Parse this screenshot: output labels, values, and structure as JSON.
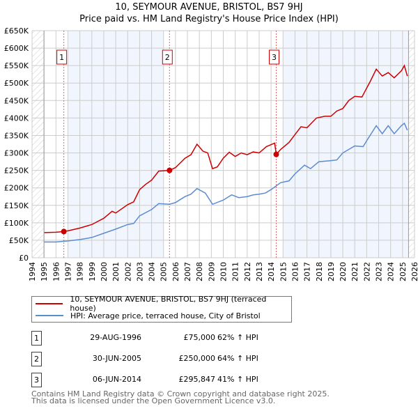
{
  "header": {
    "title": "10, SEYMOUR AVENUE, BRISTOL, BS7 9HJ",
    "subtitle": "Price paid vs. HM Land Registry's House Price Index (HPI)"
  },
  "chart_data": {
    "type": "line",
    "title": "10, SEYMOUR AVENUE, BRISTOL, BS7 9HJ — Price paid vs. HM Land Registry's House Price Index (HPI)",
    "xlim": [
      1994,
      2026
    ],
    "ylim": [
      0,
      650000
    ],
    "x_ticks": [
      "1994",
      "1995",
      "1996",
      "1997",
      "1998",
      "1999",
      "2000",
      "2001",
      "2002",
      "2003",
      "2004",
      "2005",
      "2006",
      "2007",
      "2008",
      "2009",
      "2010",
      "2011",
      "2012",
      "2013",
      "2014",
      "2015",
      "2016",
      "2017",
      "2018",
      "2019",
      "2020",
      "2021",
      "2022",
      "2023",
      "2024",
      "2025",
      "2026"
    ],
    "y_ticks": [
      "£0",
      "£50K",
      "£100K",
      "£150K",
      "£200K",
      "£250K",
      "£300K",
      "£350K",
      "£400K",
      "£450K",
      "£500K",
      "£550K",
      "£600K",
      "£650K"
    ],
    "shaded_ranges": [
      [
        1997,
        2005
      ],
      [
        2015,
        2025.5
      ]
    ],
    "hatched_ranges": [
      [
        1994,
        1995
      ],
      [
        2025.5,
        2026
      ]
    ],
    "series": [
      {
        "name": "10, SEYMOUR AVENUE, BRISTOL, BS7 9HJ (terraced house)",
        "color": "#cc0000",
        "x": [
          1995,
          1996,
          1996.66,
          1997,
          1998,
          1999,
          2000,
          2000.7,
          2001,
          2002,
          2002.5,
          2003,
          2003.5,
          2004,
          2004.6,
          2005.5,
          2006,
          2006.8,
          2007.3,
          2007.8,
          2008.3,
          2008.7,
          2009.1,
          2009.5,
          2010,
          2010.5,
          2011,
          2011.5,
          2012,
          2012.5,
          2013,
          2013.6,
          2014.3,
          2014.43,
          2014.8,
          2015.5,
          2016.5,
          2017,
          2017.8,
          2018.5,
          2019,
          2019.5,
          2020,
          2020.5,
          2021,
          2021.6,
          2022.3,
          2022.8,
          2023.3,
          2023.8,
          2024.3,
          2024.9,
          2025.15,
          2025.4
        ],
        "values": [
          72000,
          73000,
          75000,
          77000,
          85000,
          95000,
          113000,
          133000,
          128000,
          152000,
          160000,
          195000,
          210000,
          222000,
          248000,
          250000,
          258000,
          285000,
          295000,
          325000,
          305000,
          300000,
          255000,
          260000,
          285000,
          302000,
          290000,
          300000,
          295000,
          303000,
          300000,
          318000,
          328000,
          295847,
          310000,
          330000,
          375000,
          372000,
          400000,
          405000,
          405000,
          420000,
          427000,
          450000,
          462000,
          460000,
          505000,
          540000,
          520000,
          530000,
          515000,
          535000,
          550000,
          520000
        ]
      },
      {
        "name": "HPI: Average price, terraced house, City of Bristol",
        "color": "#5b8bd0",
        "x": [
          1995,
          1996,
          1997,
          1998,
          1999,
          2000,
          2001,
          2002,
          2002.5,
          2003,
          2004,
          2004.6,
          2005.5,
          2006,
          2006.8,
          2007.3,
          2007.8,
          2008.5,
          2009.1,
          2010,
          2010.7,
          2011.3,
          2012,
          2012.5,
          2013,
          2013.5,
          2014,
          2014.8,
          2015.5,
          2016,
          2016.8,
          2017.3,
          2018,
          2019,
          2019.5,
          2020,
          2021,
          2021.7,
          2022,
          2022.8,
          2023.3,
          2023.8,
          2024.3,
          2024.9,
          2025.15,
          2025.4
        ],
        "values": [
          45000,
          45000,
          48000,
          52000,
          58000,
          70000,
          82000,
          95000,
          98000,
          120000,
          138000,
          155000,
          153000,
          158000,
          175000,
          182000,
          198000,
          185000,
          153000,
          165000,
          180000,
          172000,
          175000,
          180000,
          182000,
          185000,
          195000,
          215000,
          220000,
          240000,
          265000,
          255000,
          275000,
          278000,
          280000,
          300000,
          320000,
          318000,
          335000,
          378000,
          355000,
          378000,
          355000,
          378000,
          385000,
          365000
        ]
      }
    ],
    "sales": [
      {
        "label": "1",
        "x": 1996.66,
        "value": 75000
      },
      {
        "label": "2",
        "x": 2005.5,
        "value": 250000
      },
      {
        "label": "3",
        "x": 2014.43,
        "value": 295847
      }
    ]
  },
  "legend": {
    "items": [
      "10, SEYMOUR AVENUE, BRISTOL, BS7 9HJ (terraced house)",
      "HPI: Average price, terraced house, City of Bristol"
    ]
  },
  "table": [
    {
      "num": "1",
      "date": "29-AUG-1996",
      "price": "£75,000",
      "pct": "62% ↑ HPI"
    },
    {
      "num": "2",
      "date": "30-JUN-2005",
      "price": "£250,000",
      "pct": "64% ↑ HPI"
    },
    {
      "num": "3",
      "date": "06-JUN-2014",
      "price": "£295,847",
      "pct": "41% ↑ HPI"
    }
  ],
  "footer": {
    "line1": "Contains HM Land Registry data © Crown copyright and database right 2025.",
    "line2": "This data is licensed under the Open Government Licence v3.0."
  }
}
